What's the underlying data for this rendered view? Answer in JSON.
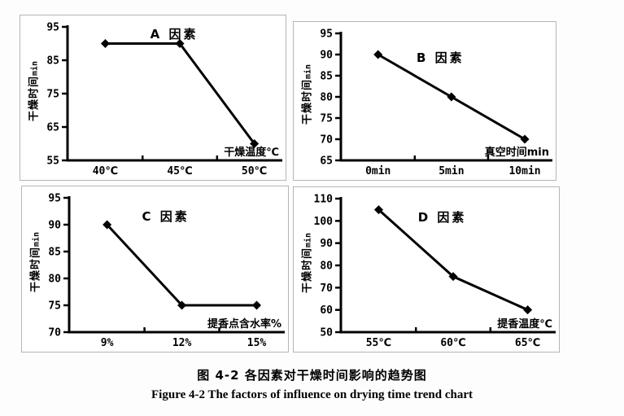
{
  "figure": {
    "caption_cn": "图 4-2 各因素对干燥时间影响的趋势图",
    "caption_en": "Figure 4-2 The factors of influence on drying time trend chart"
  },
  "colors": {
    "line": "#000000",
    "marker": "#000000",
    "axis": "#000000",
    "panel_border": "#b5b5b5",
    "background": "#fdfdfd"
  },
  "chart_data": [
    {
      "type": "line",
      "id": "A",
      "title": "A 因素",
      "ylabel_main": "干燥时间",
      "ylabel_unit": "min",
      "xlabel": "干燥温度℃",
      "categories": [
        "40℃",
        "45℃",
        "50℃"
      ],
      "values": [
        90,
        90,
        60
      ],
      "yticks": [
        95,
        85,
        75,
        65,
        55
      ],
      "ylim": [
        55,
        95
      ],
      "grid": false,
      "legend": "none",
      "marker": "diamond"
    },
    {
      "type": "line",
      "id": "B",
      "title": "B 因素",
      "ylabel_main": "干燥时间",
      "ylabel_unit": "min",
      "xlabel": "真空时间min",
      "categories": [
        "0min",
        "5min",
        "10min"
      ],
      "values": [
        90,
        80,
        70
      ],
      "yticks": [
        95,
        90,
        85,
        80,
        75,
        70,
        65
      ],
      "ylim": [
        65,
        95
      ],
      "grid": false,
      "legend": "none",
      "marker": "diamond"
    },
    {
      "type": "line",
      "id": "C",
      "title": "C 因素",
      "ylabel_main": "干燥时间",
      "ylabel_unit": "min",
      "xlabel": "提香点含水率%",
      "categories": [
        "9%",
        "12%",
        "15%"
      ],
      "values": [
        90,
        75,
        75
      ],
      "yticks": [
        95,
        90,
        85,
        80,
        75,
        70
      ],
      "ylim": [
        70,
        95
      ],
      "grid": false,
      "legend": "none",
      "marker": "diamond"
    },
    {
      "type": "line",
      "id": "D",
      "title": "D 因素",
      "ylabel_main": "干燥时间",
      "ylabel_unit": "min",
      "xlabel": "提香温度℃",
      "categories": [
        "55℃",
        "60℃",
        "65℃"
      ],
      "values": [
        105,
        75,
        60
      ],
      "yticks": [
        110,
        100,
        90,
        80,
        70,
        60,
        50
      ],
      "ylim": [
        50,
        110
      ],
      "grid": false,
      "legend": "none",
      "marker": "diamond"
    }
  ]
}
